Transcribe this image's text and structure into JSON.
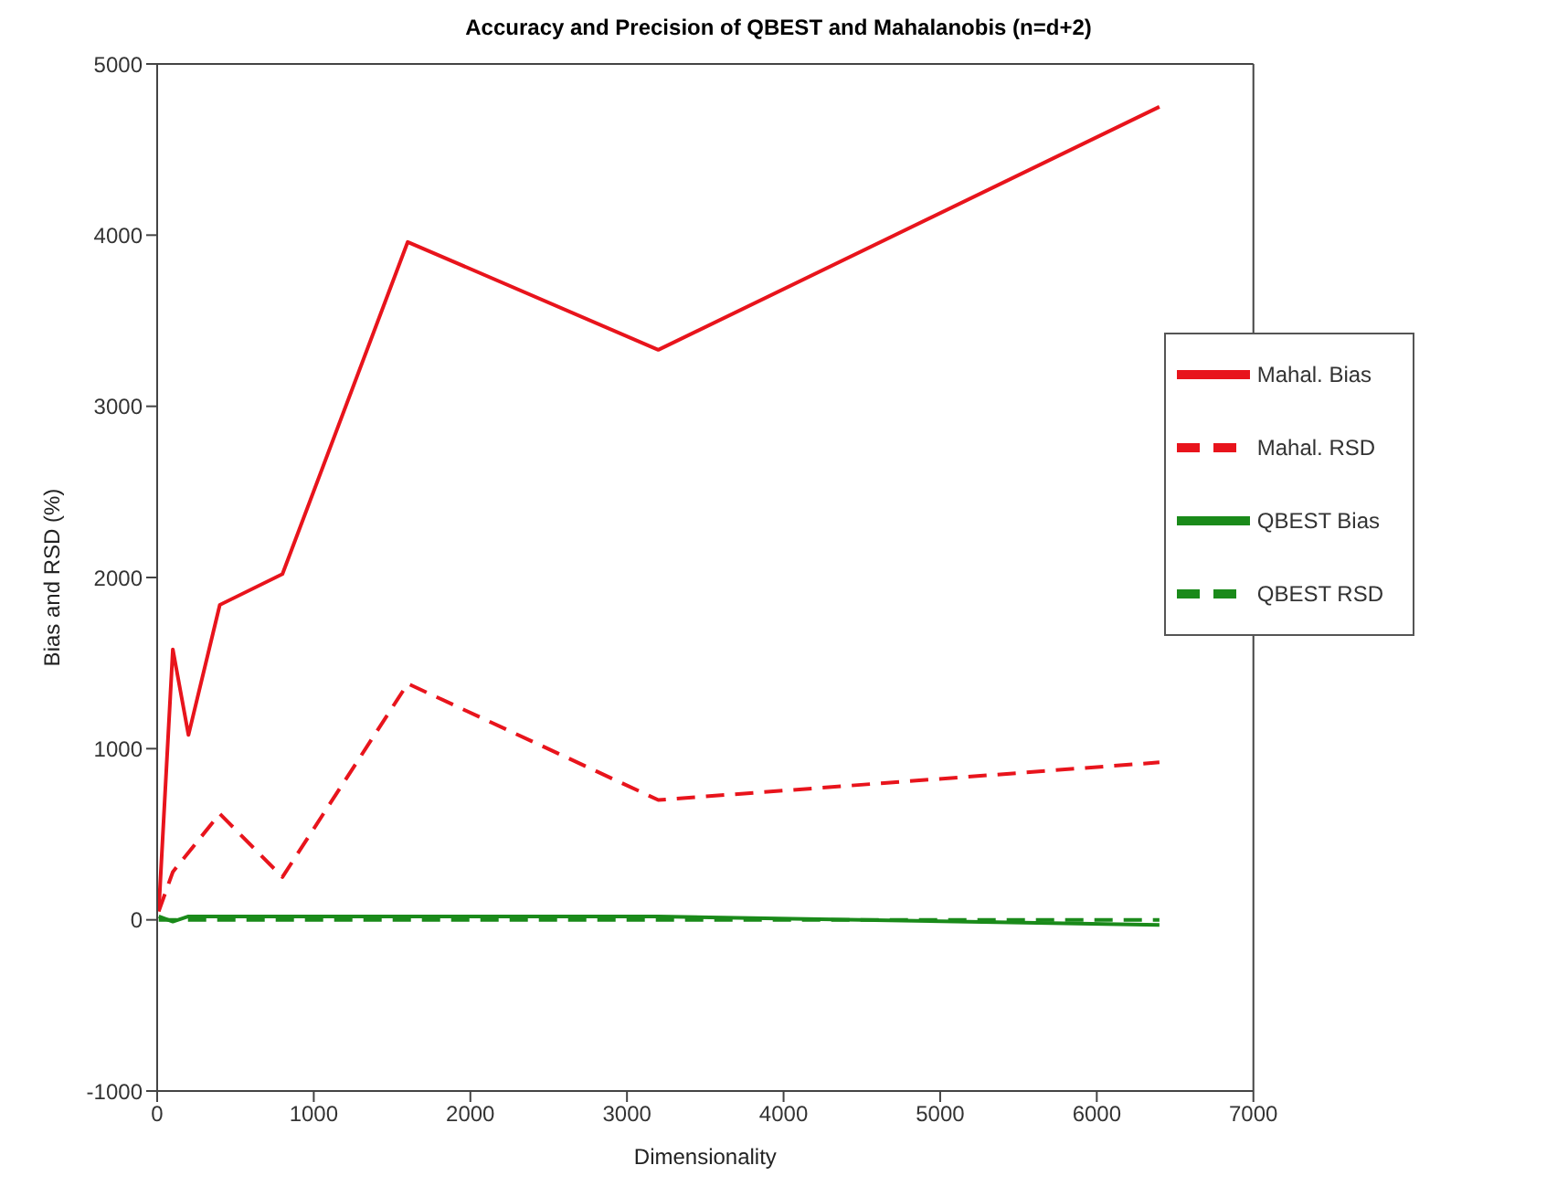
{
  "chart_data": {
    "type": "line",
    "title": "Accuracy and Precision of QBEST and Mahalanobis (n=d+2)",
    "xlabel": "Dimensionality",
    "ylabel": "Bias and RSD (%)",
    "xlim": [
      0,
      7000
    ],
    "xticks": [
      0,
      1000,
      2000,
      3000,
      4000,
      5000,
      6000,
      7000
    ],
    "ylim": [
      -1000,
      5000
    ],
    "yticks": [
      -1000,
      0,
      1000,
      2000,
      3000,
      4000,
      5000
    ],
    "grid": false,
    "legend": "top right",
    "marker": "none",
    "series": [
      {
        "name": "Mahal. Bias",
        "color": "#e8141c",
        "line_style": "solid",
        "x": [
          10,
          100,
          200,
          400,
          800,
          1600,
          3200,
          6400
        ],
        "values": [
          50,
          1580,
          1080,
          1840,
          2020,
          3960,
          3330,
          4750
        ]
      },
      {
        "name": "Mahal. RSD",
        "color": "#e8141c",
        "line_style": "dashed",
        "x": [
          10,
          100,
          400,
          800,
          1600,
          3200,
          6400
        ],
        "values": [
          50,
          280,
          620,
          250,
          1380,
          700,
          920
        ]
      },
      {
        "name": "QBEST Bias",
        "color": "#1a8a1a",
        "line_style": "solid",
        "x": [
          10,
          100,
          200,
          400,
          800,
          1600,
          3200,
          6400
        ],
        "values": [
          20,
          -10,
          20,
          20,
          20,
          20,
          20,
          -30
        ]
      },
      {
        "name": "QBEST RSD",
        "color": "#1a8a1a",
        "line_style": "dashed",
        "x": [
          10,
          100,
          200,
          400,
          800,
          1600,
          3200,
          6400
        ],
        "values": [
          0,
          0,
          0,
          0,
          0,
          0,
          0,
          0
        ]
      }
    ]
  }
}
